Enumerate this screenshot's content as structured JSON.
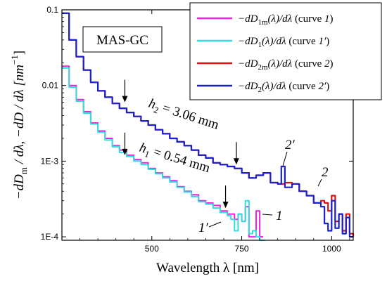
{
  "chart_data": {
    "type": "line",
    "xlabel": "Wavelength λ [nm]",
    "ylabel": "−dD_m / dλ,  −dD / dλ  [nm⁻¹]",
    "ylabel_parts": {
      "main": "−dD",
      "sub": "m",
      "rest": " / dλ,  −dD / dλ  [nm",
      "sup": "−1",
      "close": "]"
    },
    "xlim": [
      250,
      1060
    ],
    "ylim": [
      9e-05,
      0.1
    ],
    "yscale": "log",
    "x_ticks": [
      500,
      750,
      1000
    ],
    "x_tick_labels": [
      "500",
      "750",
      "1000"
    ],
    "y_ticks": [
      0.1,
      0.01,
      0.001,
      0.0001
    ],
    "y_tick_labels": [
      "0.1",
      "0.01",
      "1E-3",
      "1E-4"
    ],
    "grid": false,
    "legend_position": "top-right",
    "series": [
      {
        "name": "−dD1m(λ)/dλ (curve 1)",
        "legend": {
          "pre": "−dD",
          "sub": "1m",
          "post": "(λ)/dλ",
          "curve": "(curve ",
          "num": "1",
          "close": ")"
        },
        "color": "#ee22dd",
        "x": [
          250,
          270,
          290,
          310,
          330,
          350,
          370,
          390,
          410,
          430,
          450,
          470,
          490,
          510,
          530,
          550,
          570,
          590,
          610,
          630,
          650,
          670,
          690,
          710,
          720,
          730,
          740,
          750,
          760,
          770,
          780,
          790,
          800,
          810
        ],
        "y": [
          0.018,
          0.01,
          0.0065,
          0.0045,
          0.0032,
          0.0025,
          0.002,
          0.0016,
          0.0014,
          0.0012,
          0.00105,
          0.00095,
          0.0008,
          0.0007,
          0.00062,
          0.00055,
          0.00046,
          0.0004,
          0.00036,
          0.0003,
          0.00028,
          0.00026,
          0.00022,
          0.0002,
          0.0002,
          0.00017,
          0.0002,
          0.00016,
          0.00025,
          0.0001,
          0.0001,
          0.00022,
          0.0001,
          0.0001
        ]
      },
      {
        "name": "−dD1(λ)/dλ (curve 1′)",
        "legend": {
          "pre": "−dD",
          "sub": "1",
          "post": "(λ)/dλ",
          "curve": "(curve ",
          "num": "1′",
          "close": ")"
        },
        "color": "#33dddd",
        "x": [
          250,
          270,
          290,
          310,
          330,
          350,
          370,
          390,
          410,
          430,
          450,
          470,
          490,
          510,
          530,
          550,
          570,
          590,
          610,
          630,
          650,
          670,
          690,
          710,
          720,
          730,
          740,
          750,
          760,
          770,
          780,
          790,
          800,
          815
        ],
        "y": [
          0.017,
          0.0095,
          0.0062,
          0.0043,
          0.0031,
          0.0024,
          0.0019,
          0.00155,
          0.0013,
          0.00115,
          0.001,
          0.0009,
          0.00078,
          0.00068,
          0.0006,
          0.00053,
          0.00045,
          0.00039,
          0.00034,
          0.00029,
          0.00027,
          0.00024,
          0.00021,
          0.00019,
          0.00017,
          0.00012,
          0.0002,
          0.00016,
          0.0003,
          0.00011,
          0.00012,
          0.0001,
          9e-05,
          9e-05
        ]
      },
      {
        "name": "−dD2m(λ)/dλ (curve 2)",
        "legend": {
          "pre": "−dD",
          "sub": "2m",
          "post": "(λ)/dλ",
          "curve": "(curve ",
          "num": "2",
          "close": ")"
        },
        "color": "#dd1111",
        "x": [
          250,
          270,
          290,
          310,
          330,
          350,
          370,
          390,
          410,
          430,
          450,
          470,
          490,
          510,
          530,
          550,
          570,
          590,
          610,
          630,
          650,
          670,
          690,
          710,
          730,
          750,
          770,
          790,
          810,
          830,
          850,
          870,
          890,
          910,
          930,
          950,
          970,
          980,
          990,
          1000,
          1010,
          1020,
          1030,
          1040,
          1050,
          1060
        ],
        "y": [
          0.09,
          0.04,
          0.024,
          0.016,
          0.011,
          0.0085,
          0.007,
          0.0058,
          0.005,
          0.0044,
          0.0039,
          0.0034,
          0.003,
          0.0026,
          0.0023,
          0.002,
          0.0018,
          0.0016,
          0.0014,
          0.0012,
          0.0011,
          0.00095,
          0.0009,
          0.00085,
          0.0008,
          0.0007,
          0.0006,
          0.00065,
          0.0007,
          0.00052,
          0.0005,
          0.00052,
          0.0005,
          0.0004,
          0.00035,
          0.00028,
          0.0003,
          0.00028,
          0.00022,
          0.00035,
          0.00016,
          0.0002,
          0.00012,
          0.0002,
          0.00011,
          0.0001
        ]
      },
      {
        "name": "−dD2(λ)/dλ (curve 2′)",
        "legend": {
          "pre": "−dD",
          "sub": "2",
          "post": "(λ)/dλ",
          "curve": "(curve ",
          "num": "2′",
          "close": ")"
        },
        "color": "#1a22cc",
        "x": [
          250,
          270,
          290,
          310,
          330,
          350,
          370,
          390,
          410,
          430,
          450,
          470,
          490,
          510,
          530,
          550,
          570,
          590,
          610,
          630,
          650,
          670,
          690,
          710,
          730,
          750,
          770,
          790,
          810,
          830,
          850,
          860,
          870,
          890,
          910,
          930,
          950,
          970,
          980,
          990,
          1000,
          1010,
          1020,
          1030,
          1040,
          1050,
          1060
        ],
        "y": [
          0.09,
          0.04,
          0.024,
          0.016,
          0.011,
          0.0085,
          0.007,
          0.0058,
          0.005,
          0.0044,
          0.0039,
          0.0034,
          0.003,
          0.0026,
          0.0023,
          0.002,
          0.0018,
          0.0016,
          0.0014,
          0.0012,
          0.0011,
          0.00095,
          0.0009,
          0.00085,
          0.0008,
          0.0007,
          0.0006,
          0.00065,
          0.0007,
          0.00052,
          0.0005,
          0.00085,
          0.00045,
          0.0005,
          0.0004,
          0.00035,
          0.00028,
          0.00025,
          0.00015,
          0.00012,
          0.0003,
          0.00013,
          0.0002,
          0.00011,
          0.00018,
          0.0001,
          0.0001
        ]
      }
    ],
    "annotations": {
      "sample_label": "MAS-GC",
      "h2": {
        "var": "h",
        "sub": "2",
        "value": " = 3.06 mm"
      },
      "h1": {
        "var": "h",
        "sub": "1",
        "value": " = 0.54 mm"
      },
      "curve_labels": [
        "1",
        "1′",
        "2",
        "2′"
      ],
      "arrow_wavelengths": [
        425,
        425,
        735,
        705
      ]
    }
  }
}
